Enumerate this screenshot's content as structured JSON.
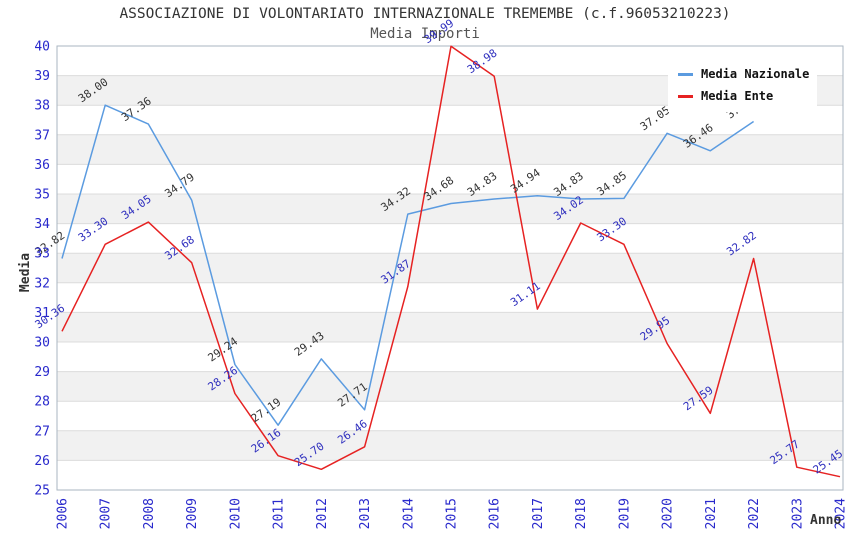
{
  "header": {
    "title": "ASSOCIAZIONE DI VOLONTARIATO INTERNAZIONALE TREMEMBE (c.f.96053210223)",
    "subtitle": "Media Importi"
  },
  "axes": {
    "y_title": "Media",
    "x_title": "Anno",
    "tick_color": "#2929CC",
    "y_ticks": [
      25,
      26,
      27,
      28,
      29,
      30,
      31,
      32,
      33,
      34,
      35,
      36,
      37,
      38,
      39,
      40
    ]
  },
  "legend": {
    "position": "top-right",
    "items": [
      {
        "label": "Media Nazionale",
        "color": "#5B9BE0"
      },
      {
        "label": "Media Ente",
        "color": "#E62222"
      }
    ]
  },
  "chart_data": {
    "type": "line",
    "title": "ASSOCIAZIONE DI VOLONTARIATO INTERNAZIONALE TREMEMBE (c.f.96053210223)",
    "subtitle": "Media Importi",
    "xlabel": "Anno",
    "ylabel": "Media",
    "ylim": [
      25,
      40
    ],
    "ytick_step": 1,
    "grid": "horizontal",
    "band_fill": "#f1f1f1",
    "grid_color": "#dcdcdc",
    "frame_color": "#aab6c2",
    "legend_position": "top-right",
    "x_categories": [
      "2006",
      "2007",
      "2008",
      "2009",
      "2010",
      "2011",
      "2012",
      "2013",
      "2014",
      "2015",
      "2016",
      "2017",
      "2018",
      "2019",
      "2020",
      "2021",
      "2022",
      "2023",
      "2024"
    ],
    "series": [
      {
        "name": "Media Nazionale",
        "color": "#5B9BE0",
        "label_color": "#333333",
        "values": [
          32.82,
          38.0,
          37.36,
          34.79,
          29.24,
          27.19,
          29.43,
          27.71,
          34.32,
          34.68,
          34.83,
          34.94,
          34.83,
          34.85,
          37.05,
          36.46,
          37.45,
          null,
          null
        ]
      },
      {
        "name": "Media Ente",
        "color": "#E62222",
        "label_color": "#2F2FBE",
        "values": [
          30.36,
          33.3,
          34.05,
          32.68,
          28.26,
          26.16,
          25.7,
          26.46,
          31.87,
          39.99,
          38.98,
          31.11,
          34.02,
          33.3,
          29.95,
          27.59,
          32.82,
          25.77,
          25.45
        ]
      }
    ]
  }
}
